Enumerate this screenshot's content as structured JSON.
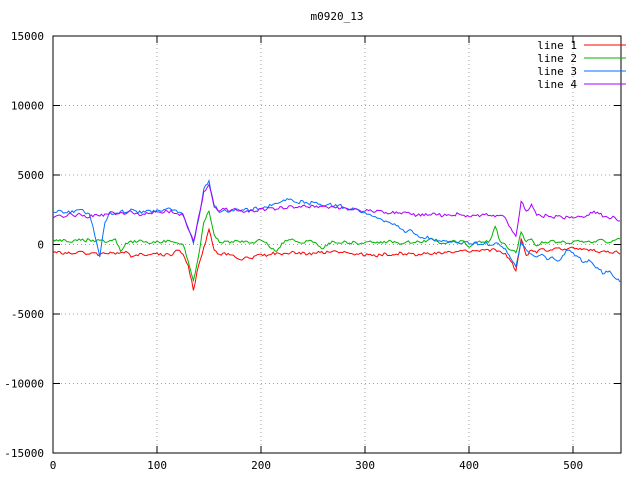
{
  "window": {
    "background": "#ffffff"
  },
  "chart_data": {
    "type": "line",
    "title": "m0920_13",
    "xlabel": "",
    "ylabel": "",
    "xlim": [
      0,
      546
    ],
    "ylim": [
      -15000,
      15000
    ],
    "x_ticks": [
      0,
      100,
      200,
      300,
      400,
      500
    ],
    "y_ticks": [
      -15000,
      -10000,
      -5000,
      0,
      5000,
      10000,
      15000
    ],
    "grid": "dotted",
    "legend_position": "top-right-inside",
    "x_start": 0,
    "x_step": 5,
    "series": [
      {
        "name": "line 1",
        "color": "#ff0000",
        "noise_amplitude": 110,
        "values": [
          -600,
          -500,
          -700,
          -550,
          -650,
          -500,
          -600,
          -700,
          -600,
          -750,
          -650,
          -550,
          -700,
          -600,
          -500,
          -900,
          -750,
          -650,
          -800,
          -700,
          -600,
          -800,
          -650,
          -750,
          -400,
          -700,
          -1500,
          -3300,
          -1500,
          -200,
          1100,
          -400,
          -700,
          -600,
          -750,
          -900,
          -1100,
          -900,
          -1000,
          -800,
          -700,
          -850,
          -700,
          -600,
          -750,
          -650,
          -500,
          -650,
          -550,
          -700,
          -600,
          -500,
          -650,
          -550,
          -450,
          -600,
          -500,
          -650,
          -750,
          -650,
          -800,
          -700,
          -850,
          -750,
          -650,
          -800,
          -700,
          -600,
          -750,
          -650,
          -800,
          -700,
          -600,
          -700,
          -550,
          -650,
          -500,
          -600,
          -500,
          -400,
          -550,
          -450,
          -500,
          -400,
          -500,
          -350,
          -500,
          -650,
          -1200,
          -1900,
          400,
          -800,
          -400,
          -600,
          -300,
          -500,
          -400,
          -250,
          -400,
          -300,
          -200,
          -350,
          -300,
          -450,
          -350,
          -600,
          -450,
          -600,
          -500,
          -700
        ]
      },
      {
        "name": "line 2",
        "color": "#00b400",
        "noise_amplitude": 110,
        "values": [
          400,
          250,
          350,
          200,
          300,
          400,
          250,
          350,
          200,
          300,
          150,
          300,
          400,
          -500,
          100,
          250,
          150,
          300,
          200,
          100,
          250,
          150,
          300,
          200,
          100,
          0,
          -1200,
          -2600,
          -800,
          1600,
          2400,
          700,
          150,
          250,
          100,
          300,
          150,
          250,
          100,
          200,
          300,
          150,
          -300,
          -500,
          100,
          250,
          400,
          200,
          100,
          250,
          150,
          -100,
          -300,
          100,
          200,
          100,
          250,
          100,
          200,
          50,
          150,
          250,
          100,
          200,
          100,
          250,
          150,
          50,
          200,
          100,
          250,
          150,
          300,
          400,
          200,
          100,
          200,
          300,
          150,
          250,
          -200,
          100,
          250,
          150,
          300,
          1300,
          200,
          0,
          -400,
          -600,
          900,
          200,
          400,
          -100,
          200,
          100,
          300,
          150,
          250,
          100,
          200,
          300,
          150,
          250,
          200,
          350,
          250,
          150,
          300,
          400
        ]
      },
      {
        "name": "line 3",
        "color": "#0072ff",
        "noise_amplitude": 120,
        "values": [
          2300,
          2450,
          2250,
          2400,
          2300,
          2500,
          2350,
          2200,
          700,
          -900,
          1600,
          2300,
          2250,
          2400,
          2300,
          2550,
          2400,
          2250,
          2450,
          2300,
          2500,
          2400,
          2600,
          2450,
          2300,
          2200,
          1200,
          100,
          1800,
          4000,
          4600,
          2800,
          2300,
          2500,
          2350,
          2500,
          2400,
          2600,
          2450,
          2700,
          2550,
          2700,
          2800,
          2950,
          3100,
          3300,
          3200,
          3000,
          3150,
          2950,
          3050,
          2900,
          2800,
          2900,
          2750,
          2850,
          2650,
          2500,
          2550,
          2350,
          2300,
          2150,
          2000,
          1850,
          1700,
          1500,
          1350,
          1100,
          900,
          1000,
          700,
          500,
          600,
          350,
          250,
          300,
          150,
          250,
          100,
          200,
          50,
          150,
          0,
          100,
          -50,
          100,
          -100,
          -300,
          -1000,
          -1600,
          200,
          -400,
          -700,
          -900,
          -700,
          -1100,
          -900,
          -1200,
          -800,
          -400,
          -600,
          -900,
          -1300,
          -1100,
          -1500,
          -1800,
          -2100,
          -1900,
          -2400,
          -2700
        ]
      },
      {
        "name": "line 4",
        "color": "#aa00ff",
        "noise_amplitude": 120,
        "values": [
          1900,
          2100,
          1950,
          2200,
          2050,
          2250,
          2100,
          1950,
          2150,
          2050,
          2200,
          2350,
          2150,
          2300,
          2200,
          2400,
          2250,
          2100,
          2300,
          2200,
          2350,
          2250,
          2400,
          2300,
          2200,
          2100,
          1100,
          200,
          2000,
          3800,
          4300,
          2700,
          2400,
          2550,
          2400,
          2600,
          2450,
          2350,
          2500,
          2400,
          2600,
          2500,
          2650,
          2550,
          2700,
          2600,
          2750,
          2650,
          2800,
          2700,
          2800,
          2650,
          2750,
          2600,
          2700,
          2550,
          2650,
          2500,
          2600,
          2450,
          2400,
          2500,
          2350,
          2450,
          2300,
          2250,
          2350,
          2200,
          2300,
          2150,
          2100,
          2200,
          2100,
          2250,
          2150,
          2050,
          2150,
          2100,
          2200,
          2100,
          2000,
          2100,
          2000,
          2150,
          2100,
          2000,
          2100,
          1900,
          1200,
          600,
          3100,
          2400,
          2900,
          2100,
          2000,
          2100,
          1950,
          2050,
          1900,
          2000,
          1900,
          2050,
          1950,
          2100,
          2400,
          2200,
          2000,
          1850,
          1950,
          1700
        ]
      }
    ]
  },
  "layout_colors": {
    "grid": "#a0a0a0",
    "axis": "#000000",
    "text": "#000000"
  }
}
